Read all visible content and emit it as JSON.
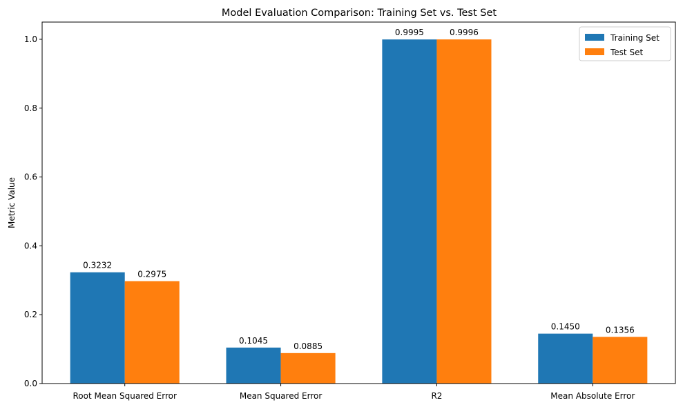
{
  "chart_data": {
    "type": "bar",
    "title": "Model Evaluation Comparison: Training Set vs. Test Set",
    "xlabel": "",
    "ylabel": "Metric Value",
    "categories": [
      "Root Mean Squared Error",
      "Mean Squared Error",
      "R2",
      "Mean Absolute Error"
    ],
    "series": [
      {
        "name": "Training Set",
        "color": "#1f77b4",
        "values": [
          0.3232,
          0.1045,
          0.9995,
          0.145
        ],
        "labels": [
          "0.3232",
          "0.1045",
          "0.9995",
          "0.1450"
        ]
      },
      {
        "name": "Test Set",
        "color": "#ff7f0e",
        "values": [
          0.2975,
          0.0885,
          0.9996,
          0.1356
        ],
        "labels": [
          "0.2975",
          "0.0885",
          "0.9996",
          "0.1356"
        ]
      }
    ],
    "ylim": [
      0,
      1.05
    ],
    "yticks": [
      "0.0",
      "0.2",
      "0.4",
      "0.6",
      "0.8",
      "1.0"
    ],
    "grid": false,
    "legend_position": "top-right"
  }
}
